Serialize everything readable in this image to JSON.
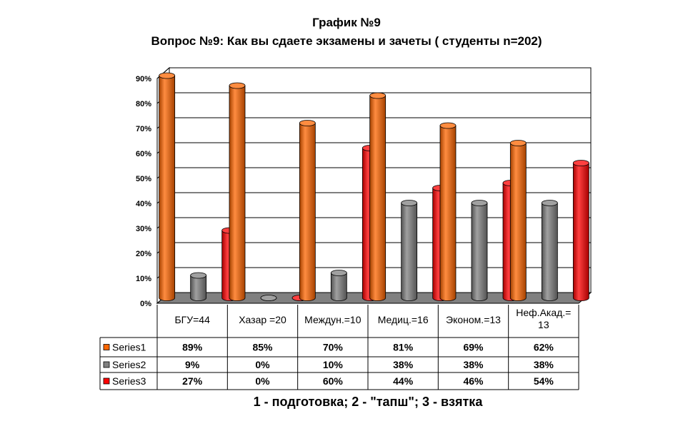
{
  "chart_data": {
    "type": "bar",
    "title": "График №9",
    "subtitle": "Вопрос №9: Как вы сдаете экзамены и зачеты ( студенты n=202)",
    "categories": [
      [
        "БГУ=44"
      ],
      [
        "Хазар =20"
      ],
      [
        "Междун.=10"
      ],
      [
        "Медиц.=16"
      ],
      [
        "Эконом.=13"
      ],
      [
        "Неф.Акад.=",
        "13"
      ]
    ],
    "ylim": [
      0,
      0.9
    ],
    "yticks": [
      "0%",
      "10%",
      "20%",
      "30%",
      "40%",
      "50%",
      "60%",
      "70%",
      "80%",
      "90%"
    ],
    "grid": true,
    "legend": "data table",
    "series": [
      {
        "name": "Series1",
        "color": "#ff6600",
        "values": [
          0.89,
          0.85,
          0.7,
          0.81,
          0.69,
          0.62
        ],
        "labels": [
          "89%",
          "85%",
          "70%",
          "81%",
          "69%",
          "62%"
        ]
      },
      {
        "name": "Series2",
        "color": "#808080",
        "values": [
          0.09,
          0.0,
          0.1,
          0.38,
          0.38,
          0.38
        ],
        "labels": [
          "9%",
          "0%",
          "10%",
          "38%",
          "38%",
          "38%"
        ]
      },
      {
        "name": "Series3",
        "color": "#ff0000",
        "values": [
          0.27,
          0.0,
          0.6,
          0.44,
          0.46,
          0.54
        ],
        "labels": [
          "27%",
          "0%",
          "60%",
          "44%",
          "46%",
          "54%"
        ]
      }
    ]
  },
  "footer": "1 - подготовка; 2 - \"тапш\"; 3 - взятка"
}
